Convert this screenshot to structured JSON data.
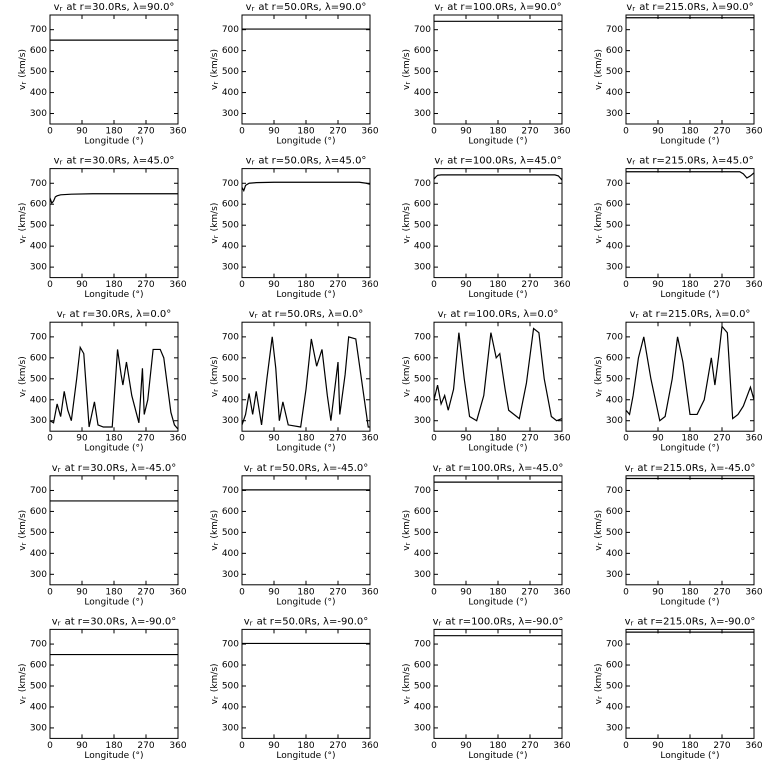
{
  "chart_data": [
    {
      "type": "line",
      "title": {
        "symbol": "v",
        "subscript": "r",
        "text": "at r=30.0Rs, λ=90.0°"
      },
      "xlabel": "Longitude (°)",
      "ylabel": {
        "symbol": "v",
        "subscript": "r",
        "text": "(km/s)"
      },
      "x": [
        0,
        360
      ],
      "values": [
        650,
        650
      ],
      "xlim": [
        0,
        360
      ],
      "ylim": [
        250,
        770
      ],
      "xticks": [
        0,
        90,
        180,
        270,
        360
      ],
      "yticks": [
        300,
        400,
        500,
        600,
        700
      ]
    },
    {
      "type": "line",
      "title": {
        "symbol": "v",
        "subscript": "r",
        "text": "at r=50.0Rs, λ=90.0°"
      },
      "xlabel": "Longitude (°)",
      "ylabel": {
        "symbol": "v",
        "subscript": "r",
        "text": "(km/s)"
      },
      "x": [
        0,
        360
      ],
      "values": [
        703,
        703
      ],
      "xlim": [
        0,
        360
      ],
      "ylim": [
        250,
        770
      ],
      "xticks": [
        0,
        90,
        180,
        270,
        360
      ],
      "yticks": [
        300,
        400,
        500,
        600,
        700
      ]
    },
    {
      "type": "line",
      "title": {
        "symbol": "v",
        "subscript": "r",
        "text": "at r=100.0Rs, λ=90.0°"
      },
      "xlabel": "Longitude (°)",
      "ylabel": {
        "symbol": "v",
        "subscript": "r",
        "text": "(km/s)"
      },
      "x": [
        0,
        360
      ],
      "values": [
        740,
        740
      ],
      "xlim": [
        0,
        360
      ],
      "ylim": [
        250,
        770
      ],
      "xticks": [
        0,
        90,
        180,
        270,
        360
      ],
      "yticks": [
        300,
        400,
        500,
        600,
        700
      ]
    },
    {
      "type": "line",
      "title": {
        "symbol": "v",
        "subscript": "r",
        "text": "at r=215.0Rs, λ=90.0°"
      },
      "xlabel": "Longitude (°)",
      "ylabel": {
        "symbol": "v",
        "subscript": "r",
        "text": "(km/s)"
      },
      "x": [
        0,
        360
      ],
      "values": [
        757,
        757
      ],
      "xlim": [
        0,
        360
      ],
      "ylim": [
        250,
        770
      ],
      "xticks": [
        0,
        90,
        180,
        270,
        360
      ],
      "yticks": [
        300,
        400,
        500,
        600,
        700
      ]
    },
    {
      "type": "line",
      "title": {
        "symbol": "v",
        "subscript": "r",
        "text": "at r=30.0Rs, λ=45.0°"
      },
      "xlabel": "Longitude (°)",
      "ylabel": {
        "symbol": "v",
        "subscript": "r",
        "text": "(km/s)"
      },
      "x": [
        0,
        5,
        10,
        15,
        20,
        30,
        60,
        120,
        180,
        240,
        300,
        360
      ],
      "values": [
        630,
        605,
        615,
        635,
        640,
        645,
        648,
        650,
        650,
        650,
        650,
        650
      ],
      "xlim": [
        0,
        360
      ],
      "ylim": [
        250,
        770
      ],
      "xticks": [
        0,
        90,
        180,
        270,
        360
      ],
      "yticks": [
        300,
        400,
        500,
        600,
        700
      ]
    },
    {
      "type": "line",
      "title": {
        "symbol": "v",
        "subscript": "r",
        "text": "at r=50.0Rs, λ=45.0°"
      },
      "xlabel": "Longitude (°)",
      "ylabel": {
        "symbol": "v",
        "subscript": "r",
        "text": "(km/s)"
      },
      "x": [
        0,
        5,
        10,
        20,
        40,
        90,
        180,
        270,
        330,
        350,
        360
      ],
      "values": [
        680,
        665,
        690,
        700,
        703,
        705,
        705,
        705,
        705,
        700,
        695
      ],
      "xlim": [
        0,
        360
      ],
      "ylim": [
        250,
        770
      ],
      "xticks": [
        0,
        90,
        180,
        270,
        360
      ],
      "yticks": [
        300,
        400,
        500,
        600,
        700
      ]
    },
    {
      "type": "line",
      "title": {
        "symbol": "v",
        "subscript": "r",
        "text": "at r=100.0Rs, λ=45.0°"
      },
      "xlabel": "Longitude (°)",
      "ylabel": {
        "symbol": "v",
        "subscript": "r",
        "text": "(km/s)"
      },
      "x": [
        0,
        5,
        10,
        20,
        90,
        180,
        270,
        340,
        350,
        355,
        360
      ],
      "values": [
        720,
        730,
        738,
        740,
        740,
        740,
        740,
        740,
        735,
        725,
        715
      ],
      "xlim": [
        0,
        360
      ],
      "ylim": [
        250,
        770
      ],
      "xticks": [
        0,
        90,
        180,
        270,
        360
      ],
      "yticks": [
        300,
        400,
        500,
        600,
        700
      ]
    },
    {
      "type": "line",
      "title": {
        "symbol": "v",
        "subscript": "r",
        "text": "at r=215.0Rs, λ=45.0°"
      },
      "xlabel": "Longitude (°)",
      "ylabel": {
        "symbol": "v",
        "subscript": "r",
        "text": "(km/s)"
      },
      "x": [
        0,
        90,
        180,
        270,
        320,
        330,
        340,
        350,
        360
      ],
      "values": [
        755,
        755,
        755,
        755,
        755,
        745,
        725,
        735,
        750
      ],
      "xlim": [
        0,
        360
      ],
      "ylim": [
        250,
        770
      ],
      "xticks": [
        0,
        90,
        180,
        270,
        360
      ],
      "yticks": [
        300,
        400,
        500,
        600,
        700
      ]
    },
    {
      "type": "line",
      "title": {
        "symbol": "v",
        "subscript": "r",
        "text": "at r=30.0Rs, λ=0.0°"
      },
      "xlabel": "Longitude (°)",
      "ylabel": {
        "symbol": "v",
        "subscript": "r",
        "text": "(km/s)"
      },
      "x": [
        0,
        10,
        20,
        30,
        40,
        50,
        60,
        75,
        85,
        95,
        110,
        125,
        135,
        150,
        175,
        190,
        200,
        205,
        215,
        230,
        250,
        260,
        265,
        275,
        290,
        310,
        320,
        340,
        350,
        360
      ],
      "values": [
        300,
        290,
        380,
        320,
        440,
        350,
        300,
        500,
        650,
        620,
        270,
        390,
        280,
        270,
        270,
        640,
        520,
        470,
        580,
        420,
        290,
        550,
        330,
        400,
        640,
        640,
        600,
        340,
        280,
        260
      ],
      "xlim": [
        0,
        360
      ],
      "ylim": [
        250,
        770
      ],
      "xticks": [
        0,
        90,
        180,
        270,
        360
      ],
      "yticks": [
        300,
        400,
        500,
        600,
        700
      ]
    },
    {
      "type": "line",
      "title": {
        "symbol": "v",
        "subscript": "r",
        "text": "at r=50.0Rs, λ=0.0°"
      },
      "xlabel": "Longitude (°)",
      "ylabel": {
        "symbol": "v",
        "subscript": "r",
        "text": "(km/s)"
      },
      "x": [
        0,
        10,
        20,
        30,
        40,
        55,
        70,
        85,
        95,
        105,
        115,
        130,
        165,
        180,
        195,
        210,
        225,
        240,
        250,
        270,
        275,
        290,
        300,
        320,
        340,
        355,
        360
      ],
      "values": [
        280,
        330,
        430,
        330,
        440,
        280,
        500,
        700,
        550,
        300,
        390,
        280,
        270,
        450,
        690,
        560,
        640,
        420,
        300,
        580,
        330,
        520,
        700,
        690,
        450,
        270,
        270
      ],
      "xlim": [
        0,
        360
      ],
      "ylim": [
        250,
        770
      ],
      "xticks": [
        0,
        90,
        180,
        270,
        360
      ],
      "yticks": [
        300,
        400,
        500,
        600,
        700
      ]
    },
    {
      "type": "line",
      "title": {
        "symbol": "v",
        "subscript": "r",
        "text": "at r=100.0Rs, λ=0.0°"
      },
      "xlabel": "Longitude (°)",
      "ylabel": {
        "symbol": "v",
        "subscript": "r",
        "text": "(km/s)"
      },
      "x": [
        0,
        10,
        20,
        30,
        40,
        55,
        70,
        85,
        100,
        120,
        140,
        160,
        175,
        185,
        200,
        210,
        240,
        260,
        280,
        295,
        310,
        330,
        345,
        360
      ],
      "values": [
        400,
        470,
        380,
        420,
        350,
        450,
        720,
        500,
        320,
        300,
        420,
        720,
        600,
        620,
        450,
        350,
        310,
        480,
        740,
        720,
        500,
        320,
        300,
        310
      ],
      "xlim": [
        0,
        360
      ],
      "ylim": [
        250,
        770
      ],
      "xticks": [
        0,
        90,
        180,
        270,
        360
      ],
      "yticks": [
        300,
        400,
        500,
        600,
        700
      ]
    },
    {
      "type": "line",
      "title": {
        "symbol": "v",
        "subscript": "r",
        "text": "at r=215.0Rs, λ=0.0°"
      },
      "xlabel": "Longitude (°)",
      "ylabel": {
        "symbol": "v",
        "subscript": "r",
        "text": "(km/s)"
      },
      "x": [
        0,
        10,
        20,
        35,
        50,
        70,
        95,
        110,
        130,
        145,
        160,
        180,
        200,
        220,
        240,
        250,
        260,
        270,
        285,
        300,
        315,
        330,
        350,
        360
      ],
      "values": [
        350,
        330,
        420,
        600,
        700,
        500,
        300,
        320,
        500,
        700,
        580,
        330,
        330,
        400,
        600,
        470,
        600,
        750,
        720,
        310,
        330,
        370,
        460,
        400
      ],
      "xlim": [
        0,
        360
      ],
      "ylim": [
        250,
        770
      ],
      "xticks": [
        0,
        90,
        180,
        270,
        360
      ],
      "yticks": [
        300,
        400,
        500,
        600,
        700
      ]
    },
    {
      "type": "line",
      "title": {
        "symbol": "v",
        "subscript": "r",
        "text": "at r=30.0Rs, λ=-45.0°"
      },
      "xlabel": "Longitude (°)",
      "ylabel": {
        "symbol": "v",
        "subscript": "r",
        "text": "(km/s)"
      },
      "x": [
        0,
        360
      ],
      "values": [
        650,
        650
      ],
      "xlim": [
        0,
        360
      ],
      "ylim": [
        250,
        770
      ],
      "xticks": [
        0,
        90,
        180,
        270,
        360
      ],
      "yticks": [
        300,
        400,
        500,
        600,
        700
      ]
    },
    {
      "type": "line",
      "title": {
        "symbol": "v",
        "subscript": "r",
        "text": "at r=50.0Rs, λ=-45.0°"
      },
      "xlabel": "Longitude (°)",
      "ylabel": {
        "symbol": "v",
        "subscript": "r",
        "text": "(km/s)"
      },
      "x": [
        0,
        360
      ],
      "values": [
        703,
        703
      ],
      "xlim": [
        0,
        360
      ],
      "ylim": [
        250,
        770
      ],
      "xticks": [
        0,
        90,
        180,
        270,
        360
      ],
      "yticks": [
        300,
        400,
        500,
        600,
        700
      ]
    },
    {
      "type": "line",
      "title": {
        "symbol": "v",
        "subscript": "r",
        "text": "at r=100.0Rs, λ=-45.0°"
      },
      "xlabel": "Longitude (°)",
      "ylabel": {
        "symbol": "v",
        "subscript": "r",
        "text": "(km/s)"
      },
      "x": [
        0,
        360
      ],
      "values": [
        740,
        740
      ],
      "xlim": [
        0,
        360
      ],
      "ylim": [
        250,
        770
      ],
      "xticks": [
        0,
        90,
        180,
        270,
        360
      ],
      "yticks": [
        300,
        400,
        500,
        600,
        700
      ]
    },
    {
      "type": "line",
      "title": {
        "symbol": "v",
        "subscript": "r",
        "text": "at r=215.0Rs, λ=-45.0°"
      },
      "xlabel": "Longitude (°)",
      "ylabel": {
        "symbol": "v",
        "subscript": "r",
        "text": "(km/s)"
      },
      "x": [
        0,
        360
      ],
      "values": [
        757,
        757
      ],
      "xlim": [
        0,
        360
      ],
      "ylim": [
        250,
        770
      ],
      "xticks": [
        0,
        90,
        180,
        270,
        360
      ],
      "yticks": [
        300,
        400,
        500,
        600,
        700
      ]
    },
    {
      "type": "line",
      "title": {
        "symbol": "v",
        "subscript": "r",
        "text": "at r=30.0Rs, λ=-90.0°"
      },
      "xlabel": "Longitude (°)",
      "ylabel": {
        "symbol": "v",
        "subscript": "r",
        "text": "(km/s)"
      },
      "x": [
        0,
        360
      ],
      "values": [
        650,
        650
      ],
      "xlim": [
        0,
        360
      ],
      "ylim": [
        250,
        770
      ],
      "xticks": [
        0,
        90,
        180,
        270,
        360
      ],
      "yticks": [
        300,
        400,
        500,
        600,
        700
      ]
    },
    {
      "type": "line",
      "title": {
        "symbol": "v",
        "subscript": "r",
        "text": "at r=50.0Rs, λ=-90.0°"
      },
      "xlabel": "Longitude (°)",
      "ylabel": {
        "symbol": "v",
        "subscript": "r",
        "text": "(km/s)"
      },
      "x": [
        0,
        360
      ],
      "values": [
        703,
        703
      ],
      "xlim": [
        0,
        360
      ],
      "ylim": [
        250,
        770
      ],
      "xticks": [
        0,
        90,
        180,
        270,
        360
      ],
      "yticks": [
        300,
        400,
        500,
        600,
        700
      ]
    },
    {
      "type": "line",
      "title": {
        "symbol": "v",
        "subscript": "r",
        "text": "at r=100.0Rs, λ=-90.0°"
      },
      "xlabel": "Longitude (°)",
      "ylabel": {
        "symbol": "v",
        "subscript": "r",
        "text": "(km/s)"
      },
      "x": [
        0,
        360
      ],
      "values": [
        740,
        740
      ],
      "xlim": [
        0,
        360
      ],
      "ylim": [
        250,
        770
      ],
      "xticks": [
        0,
        90,
        180,
        270,
        360
      ],
      "yticks": [
        300,
        400,
        500,
        600,
        700
      ]
    },
    {
      "type": "line",
      "title": {
        "symbol": "v",
        "subscript": "r",
        "text": "at r=215.0Rs, λ=-90.0°"
      },
      "xlabel": "Longitude (°)",
      "ylabel": {
        "symbol": "v",
        "subscript": "r",
        "text": "(km/s)"
      },
      "x": [
        0,
        360
      ],
      "values": [
        757,
        757
      ],
      "xlim": [
        0,
        360
      ],
      "ylim": [
        250,
        770
      ],
      "xticks": [
        0,
        90,
        180,
        270,
        360
      ],
      "yticks": [
        300,
        400,
        500,
        600,
        700
      ]
    }
  ]
}
